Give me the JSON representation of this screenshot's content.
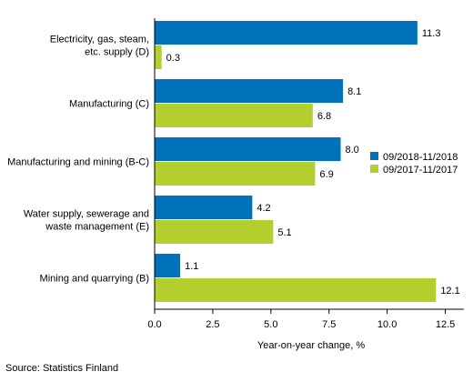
{
  "chart_data": {
    "type": "bar",
    "orientation": "horizontal",
    "categories": [
      [
        "Electricity, gas, steam,",
        "etc. supply (D)"
      ],
      [
        "Manufacturing (C)"
      ],
      [
        "Manufacturing and mining (B-C)"
      ],
      [
        "Water supply, sewerage and",
        "waste management (E)"
      ],
      [
        "Mining and quarrying (B)"
      ]
    ],
    "series": [
      {
        "name": "09/2018-11/2018",
        "values": [
          11.3,
          8.1,
          8.0,
          4.2,
          1.1
        ],
        "color": "#0072b9"
      },
      {
        "name": "09/2017-11/2017",
        "values": [
          0.3,
          6.8,
          6.9,
          5.1,
          12.1
        ],
        "color": "#b3cf2e"
      }
    ],
    "value_labels": [
      [
        "11.3",
        "8.1",
        "8.0",
        "4.2",
        "1.1"
      ],
      [
        "0.3",
        "6.8",
        "6.9",
        "5.1",
        "12.1"
      ]
    ],
    "xlabel": "Year-on-year change, %",
    "xlim": [
      0,
      13.3
    ],
    "xticks": [
      0,
      2.5,
      5.0,
      7.5,
      10.0,
      12.5
    ],
    "xtick_labels": [
      "0.0",
      "2.5",
      "5.0",
      "7.5",
      "10.0",
      "12.5"
    ],
    "grid": false,
    "legend_position": "right"
  },
  "source": "Source: Statistics Finland",
  "colors": {
    "axis": "#000000",
    "text": "#000000"
  }
}
